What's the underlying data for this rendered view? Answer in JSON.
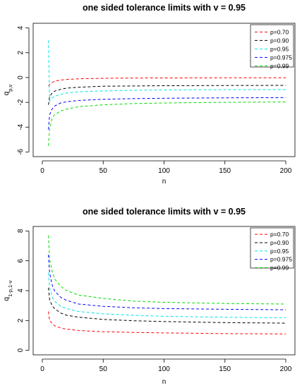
{
  "chart_data": [
    {
      "type": "line",
      "title": "one sided tolerance limits with v = 0.95",
      "xlabel": "n",
      "ylabel_main": "q",
      "ylabel_sub": "p,v",
      "xlim": [
        0,
        200
      ],
      "ylim": [
        -6,
        4
      ],
      "xticks": [
        0,
        50,
        100,
        150,
        200
      ],
      "yticks": [
        -6,
        -4,
        -2,
        0,
        2,
        4
      ],
      "grid": false,
      "legend_position": "top-right",
      "x": [
        5,
        6,
        8,
        10,
        15,
        20,
        30,
        50,
        75,
        100,
        150,
        200
      ],
      "series": [
        {
          "name": "p=0.70",
          "color": "#ff0000",
          "values": [
            -0.7,
            -0.55,
            -0.4,
            -0.3,
            -0.2,
            -0.15,
            -0.1,
            -0.06,
            -0.04,
            -0.03,
            -0.02,
            -0.02
          ]
        },
        {
          "name": "p=0.90",
          "color": "#000000",
          "values": [
            -2.2,
            -1.55,
            -1.25,
            -1.1,
            -0.95,
            -0.85,
            -0.78,
            -0.7,
            -0.68,
            -0.66,
            -0.64,
            -0.63
          ]
        },
        {
          "name": "p=0.95",
          "color": "#00e5e5",
          "values": [
            3.0,
            -1.9,
            -1.65,
            -1.5,
            -1.35,
            -1.25,
            -1.15,
            -1.08,
            -1.03,
            -1.0,
            -0.98,
            -0.97
          ]
        },
        {
          "name": "p=0.975",
          "color": "#0000ff",
          "values": [
            -4.2,
            -3.0,
            -2.55,
            -2.3,
            -2.05,
            -1.95,
            -1.85,
            -1.75,
            -1.7,
            -1.67,
            -1.64,
            -1.62
          ]
        },
        {
          "name": "p=0.99",
          "color": "#00dd00",
          "values": [
            -5.5,
            -4.2,
            -3.3,
            -3.0,
            -2.7,
            -2.55,
            -2.35,
            -2.2,
            -2.1,
            -2.05,
            -2.0,
            -1.97
          ]
        }
      ]
    },
    {
      "type": "line",
      "title": "one sided tolerance limits with v = 0.95",
      "xlabel": "n",
      "ylabel_main": "q",
      "ylabel_sub": "1-p,1-v",
      "xlim": [
        0,
        200
      ],
      "ylim": [
        0,
        8
      ],
      "xticks": [
        0,
        50,
        100,
        150,
        200
      ],
      "yticks": [
        0,
        2,
        4,
        6,
        8
      ],
      "grid": false,
      "legend_position": "top-right",
      "x": [
        5,
        6,
        8,
        10,
        15,
        20,
        30,
        50,
        75,
        100,
        150,
        200
      ],
      "series": [
        {
          "name": "p=0.70",
          "color": "#ff0000",
          "values": [
            2.6,
            2.0,
            1.8,
            1.65,
            1.5,
            1.42,
            1.33,
            1.25,
            1.2,
            1.17,
            1.12,
            1.1
          ]
        },
        {
          "name": "p=0.90",
          "color": "#000000",
          "values": [
            4.2,
            3.4,
            3.0,
            2.8,
            2.5,
            2.35,
            2.22,
            2.07,
            1.98,
            1.93,
            1.86,
            1.82
          ]
        },
        {
          "name": "p=0.95",
          "color": "#00e5e5",
          "values": [
            5.2,
            4.2,
            3.6,
            3.3,
            2.95,
            2.8,
            2.6,
            2.45,
            2.35,
            2.28,
            2.22,
            2.18
          ]
        },
        {
          "name": "p=0.975",
          "color": "#0000ff",
          "values": [
            6.4,
            5.2,
            4.4,
            4.0,
            3.55,
            3.35,
            3.1,
            2.95,
            2.85,
            2.8,
            2.75,
            2.72
          ]
        },
        {
          "name": "p=0.99",
          "color": "#00dd00",
          "values": [
            7.7,
            6.1,
            5.3,
            4.8,
            4.3,
            4.0,
            3.7,
            3.48,
            3.3,
            3.22,
            3.14,
            3.1
          ]
        }
      ]
    }
  ]
}
